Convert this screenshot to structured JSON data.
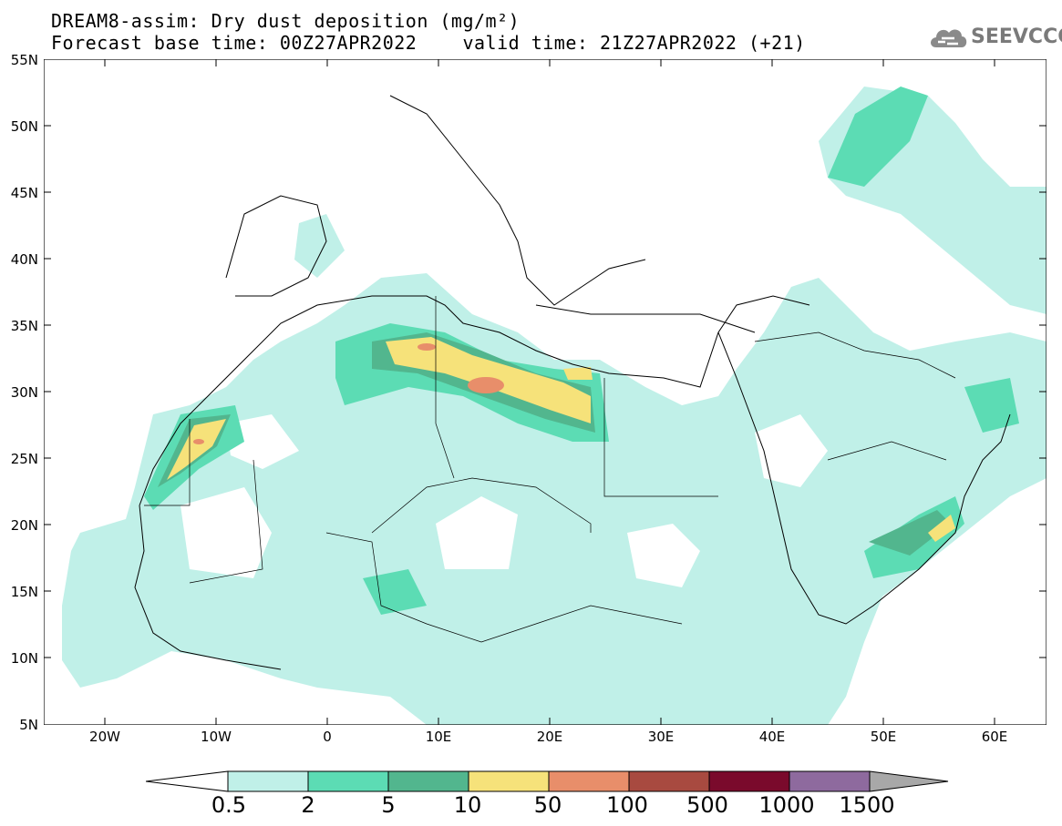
{
  "title": {
    "line1": "DREAM8-assim: Dry dust deposition (mg/m²)",
    "line2": "Forecast base time: 00Z27APR2022    valid time: 21Z27APR2022 (+21)"
  },
  "logo": {
    "text": "SEEVCCC",
    "icon": "cloud-icon"
  },
  "map": {
    "lat_labels": [
      "55N",
      "50N",
      "45N",
      "40N",
      "35N",
      "30N",
      "25N",
      "20N",
      "15N",
      "10N",
      "5N"
    ],
    "lon_labels": [
      "20W",
      "10W",
      "0",
      "10E",
      "20E",
      "30E",
      "40E",
      "50E",
      "60E"
    ],
    "lon_range": [
      -25,
      65
    ],
    "lat_range": [
      5,
      55
    ]
  },
  "colorbar": {
    "labels": [
      "0.5",
      "2",
      "5",
      "10",
      "50",
      "100",
      "500",
      "1000",
      "1500"
    ],
    "colors": [
      "#c0f0e8",
      "#5cdcb4",
      "#52b68e",
      "#f6e27a",
      "#e88e6a",
      "#a84a40",
      "#7a0a2c",
      "#8e6a9e"
    ],
    "below_color": "#ffffff",
    "above_color": "#a8a8a8"
  }
}
